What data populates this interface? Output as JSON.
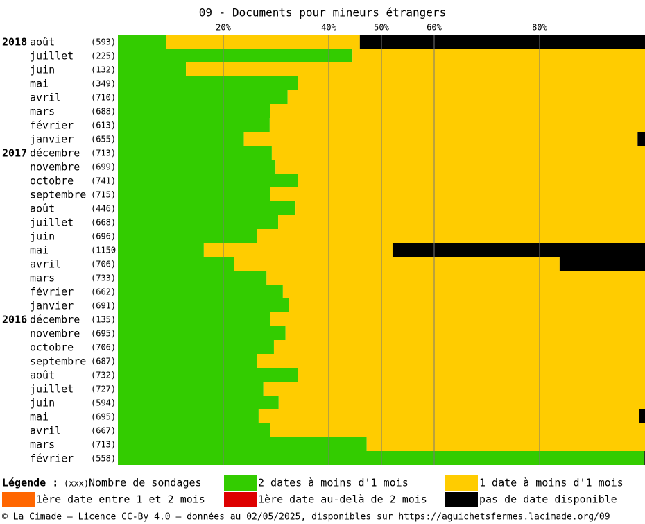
{
  "chart_data": {
    "type": "bar",
    "orientation": "horizontal",
    "stacked": true,
    "title": "09 - Documents pour mineurs étrangers",
    "categories": [
      "août",
      "juillet",
      "juin",
      "mai",
      "avril",
      "mars",
      "février",
      "janvier",
      "décembre",
      "novembre",
      "octobre",
      "septembre",
      "août",
      "juillet",
      "juin",
      "mai",
      "avril",
      "mars",
      "février",
      "janvier",
      "décembre",
      "novembre",
      "octobre",
      "septembre",
      "août",
      "juillet",
      "juin",
      "mai",
      "avril",
      "mars",
      "février"
    ],
    "year_labels": [
      "2018",
      null,
      null,
      null,
      null,
      null,
      null,
      null,
      "2017",
      null,
      null,
      null,
      null,
      null,
      null,
      null,
      null,
      null,
      null,
      null,
      "2016",
      null,
      null,
      null,
      null,
      null,
      null,
      null,
      null,
      null,
      null
    ],
    "count_labels": [
      "(593)",
      "(225)",
      "(132)",
      "(349)",
      "(710)",
      "(688)",
      "(613)",
      "(655)",
      "(713)",
      "(699)",
      "(741)",
      "(715)",
      "(446)",
      "(668)",
      "(696)",
      "(1150",
      "(706)",
      "(733)",
      "(662)",
      "(691)",
      "(135)",
      "(695)",
      "(706)",
      "(687)",
      "(732)",
      "(727)",
      "(594)",
      "(695)",
      "(667)",
      "(713)",
      "(558)"
    ],
    "series": [
      {
        "name": "2 dates à moins d'1 mois",
        "color": "#33cc00",
        "values": [
          9.2,
          44.5,
          12.9,
          34.1,
          32.2,
          28.9,
          28.8,
          23.9,
          29.2,
          29.9,
          34.1,
          28.9,
          33.7,
          30.4,
          26.4,
          16.3,
          22.0,
          28.2,
          31.3,
          32.5,
          28.9,
          31.8,
          29.6,
          26.4,
          34.2,
          27.6,
          30.5,
          26.7,
          28.9,
          47.2,
          99.9
        ]
      },
      {
        "name": "1 date à moins d'1 mois",
        "color": "#ffcc00",
        "values": [
          36.7,
          55.5,
          87.1,
          65.9,
          67.8,
          71.1,
          71.2,
          74.7,
          70.8,
          70.1,
          65.9,
          71.1,
          66.3,
          69.6,
          73.6,
          35.8,
          61.8,
          71.8,
          68.7,
          67.5,
          71.1,
          68.2,
          70.4,
          73.6,
          65.8,
          72.4,
          69.5,
          72.2,
          71.1,
          52.8,
          0
        ]
      },
      {
        "name": "1ère date entre 1 et 2 mois",
        "color": "#ff6600",
        "values": [
          0,
          0,
          0,
          0,
          0,
          0,
          0,
          0,
          0,
          0,
          0,
          0,
          0,
          0,
          0,
          0,
          0,
          0,
          0,
          0,
          0,
          0,
          0,
          0,
          0,
          0,
          0,
          0,
          0,
          0,
          0
        ]
      },
      {
        "name": "1ère date au-delà de 2 mois",
        "color": "#dd0000",
        "values": [
          0,
          0,
          0,
          0,
          0,
          0,
          0,
          0,
          0,
          0,
          0,
          0,
          0,
          0,
          0,
          0,
          0,
          0,
          0,
          0,
          0,
          0,
          0,
          0,
          0,
          0,
          0,
          0,
          0,
          0,
          0
        ]
      },
      {
        "name": "pas de date disponible",
        "color": "#000000",
        "values": [
          54.1,
          0,
          0,
          0,
          0,
          0,
          0,
          1.4,
          0,
          0,
          0,
          0,
          0,
          0,
          0,
          47.9,
          16.2,
          0,
          0,
          0,
          0,
          0,
          0,
          0,
          0,
          0,
          0,
          1.1,
          0,
          0,
          0.1
        ]
      }
    ],
    "xlim": [
      0,
      100
    ],
    "xticks": [
      {
        "value": 20,
        "label": "20%"
      },
      {
        "value": 40,
        "label": "40%"
      },
      {
        "value": 50,
        "label": "50%"
      },
      {
        "value": 60,
        "label": "60%"
      },
      {
        "value": 80,
        "label": "80%"
      }
    ],
    "grid": true,
    "legend": {
      "title": "Légende :",
      "count_marker": "(xxx)",
      "count_text": "Nombre de sondages"
    },
    "footer": "© La Cimade — Licence CC-By 4.0 — données au 02/05/2025, disponibles sur https://aguichetsfermes.lacimade.org/09"
  }
}
